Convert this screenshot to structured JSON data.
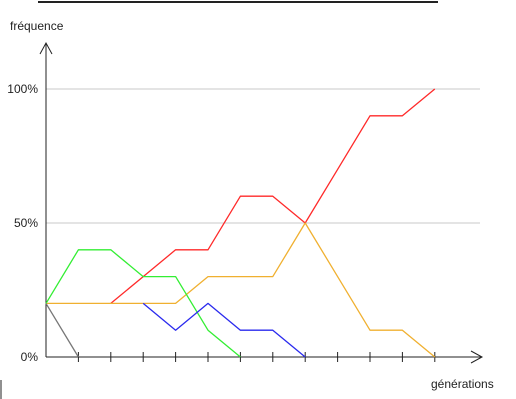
{
  "chart_data": {
    "type": "line",
    "title": "",
    "xlabel": "générations",
    "ylabel": "fréquence",
    "x": [
      0,
      1,
      2,
      3,
      4,
      5,
      6,
      7,
      8,
      9,
      10,
      11,
      12
    ],
    "ylim": [
      0,
      100
    ],
    "y_ticks": [
      {
        "value": 0,
        "label": "0%"
      },
      {
        "value": 50,
        "label": "50%"
      },
      {
        "value": 100,
        "label": "100%"
      }
    ],
    "grid": "horizontal at 50% and 100%",
    "legend": "none",
    "series": [
      {
        "color": "#ff2a2a",
        "points": [
          [
            2,
            20
          ],
          [
            3,
            30
          ],
          [
            4,
            40
          ],
          [
            5,
            40
          ],
          [
            6,
            60
          ],
          [
            7,
            60
          ],
          [
            8,
            50
          ],
          [
            9,
            70
          ],
          [
            10,
            90
          ],
          [
            11,
            90
          ],
          [
            12,
            100
          ]
        ]
      },
      {
        "color": "#f0b030",
        "points": [
          [
            0,
            20
          ],
          [
            1,
            20
          ],
          [
            2,
            20
          ],
          [
            3,
            20
          ],
          [
            4,
            20
          ],
          [
            5,
            30
          ],
          [
            6,
            30
          ],
          [
            7,
            30
          ],
          [
            8,
            50
          ],
          [
            9,
            30
          ],
          [
            10,
            10
          ],
          [
            11,
            10
          ],
          [
            12,
            0
          ]
        ]
      },
      {
        "color": "#33ee33",
        "points": [
          [
            0,
            20
          ],
          [
            1,
            40
          ],
          [
            2,
            40
          ],
          [
            3,
            30
          ],
          [
            4,
            30
          ],
          [
            5,
            10
          ],
          [
            6,
            0
          ]
        ]
      },
      {
        "color": "#2a2aee",
        "points": [
          [
            3,
            20
          ],
          [
            4,
            10
          ],
          [
            5,
            20
          ],
          [
            6,
            10
          ],
          [
            7,
            10
          ],
          [
            8,
            0
          ]
        ]
      },
      {
        "color": "#777777",
        "points": [
          [
            0,
            20
          ],
          [
            1,
            0
          ]
        ]
      }
    ]
  }
}
